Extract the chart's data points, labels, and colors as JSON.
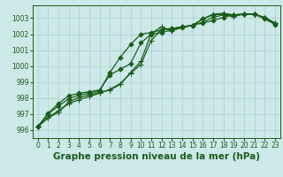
{
  "background_color": "#cde8e8",
  "grid_color": "#aacccc",
  "line_color": "#1a5c1a",
  "xlabel": "Graphe pression niveau de la mer (hPa)",
  "xlabel_fontsize": 7.5,
  "tick_fontsize": 5.5,
  "xlim": [
    -0.5,
    23.5
  ],
  "ylim": [
    995.5,
    1003.8
  ],
  "yticks": [
    996,
    997,
    998,
    999,
    1000,
    1001,
    1002,
    1003
  ],
  "xticks": [
    0,
    1,
    2,
    3,
    4,
    5,
    6,
    7,
    8,
    9,
    10,
    11,
    12,
    13,
    14,
    15,
    16,
    17,
    18,
    19,
    20,
    21,
    22,
    23
  ],
  "series": [
    {
      "y": [
        996.2,
        996.75,
        997.1,
        997.75,
        998.05,
        998.2,
        998.35,
        998.5,
        998.85,
        999.6,
        1000.3,
        1002.05,
        1002.45,
        1002.2,
        1002.45,
        1002.55,
        1002.95,
        1003.25,
        1003.3,
        1003.2,
        1003.25,
        1003.25,
        1003.0,
        1002.7
      ],
      "lw": 0.9,
      "marker": "+",
      "ms": 4.0,
      "zorder": 3
    },
    {
      "y": [
        996.2,
        996.8,
        997.2,
        997.65,
        997.9,
        998.1,
        998.3,
        998.55,
        998.9,
        999.55,
        1000.1,
        1001.6,
        1002.3,
        1002.35,
        1002.45,
        1002.55,
        1002.75,
        1003.05,
        1003.2,
        1003.1,
        1003.25,
        1003.25,
        1003.05,
        1002.7
      ],
      "lw": 0.9,
      "marker": "+",
      "ms": 4.0,
      "zorder": 3
    },
    {
      "y": [
        996.2,
        997.0,
        997.5,
        997.95,
        998.2,
        998.3,
        998.45,
        999.6,
        1000.55,
        1001.35,
        1002.0,
        1002.1,
        1002.25,
        1002.35,
        1002.45,
        1002.55,
        1002.7,
        1002.85,
        1003.05,
        1003.2,
        1003.25,
        1003.25,
        1002.95,
        1002.6
      ],
      "lw": 0.9,
      "marker": "D",
      "ms": 2.5,
      "zorder": 4
    },
    {
      "y": [
        996.2,
        997.05,
        997.65,
        998.15,
        998.3,
        998.4,
        998.5,
        999.45,
        999.8,
        1000.15,
        1001.45,
        1002.0,
        1002.1,
        1002.25,
        1002.4,
        1002.55,
        1002.95,
        1003.2,
        1003.25,
        1003.2,
        1003.25,
        1003.25,
        1003.0,
        1002.65
      ],
      "lw": 0.9,
      "marker": "D",
      "ms": 2.5,
      "zorder": 4
    }
  ]
}
